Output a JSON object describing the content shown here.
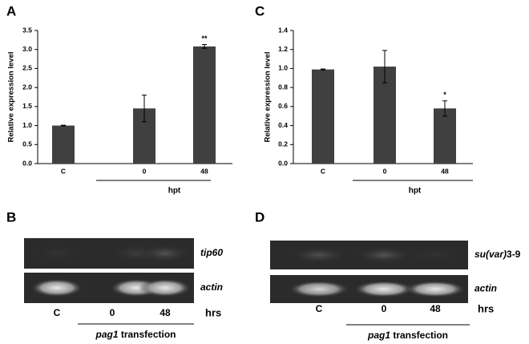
{
  "chart_data": [
    {
      "type": "bar",
      "panel": "A",
      "ylabel": "Relative expression level",
      "categories": [
        "C",
        "0",
        "48"
      ],
      "values": [
        1.0,
        1.45,
        3.08
      ],
      "errors": [
        0.01,
        0.35,
        0.05
      ],
      "significance": [
        null,
        null,
        "**"
      ],
      "group_label": "hpt",
      "color": "#404040",
      "ylim": [
        0,
        3.5
      ],
      "yticks": [
        {
          "value": 0,
          "label": "0.0"
        },
        {
          "value": 0.5,
          "label": "0.5"
        },
        {
          "value": 1,
          "label": "1.0"
        },
        {
          "value": 1.5,
          "label": "1.5"
        },
        {
          "value": 2,
          "label": "2.0"
        },
        {
          "value": 2.5,
          "label": "2.5"
        },
        {
          "value": 3,
          "label": "3.0"
        },
        {
          "value": 3.5,
          "label": "3.5"
        }
      ]
    },
    {
      "type": "bar",
      "panel": "C",
      "ylabel": "Relative expression level",
      "categories": [
        "C",
        "0",
        "48"
      ],
      "values": [
        0.99,
        1.02,
        0.58
      ],
      "errors": [
        0.005,
        0.17,
        0.08
      ],
      "significance": [
        null,
        null,
        "*"
      ],
      "group_label": "hpt",
      "color": "#404040",
      "ylim": [
        0,
        1.4
      ],
      "yticks": [
        {
          "value": 0,
          "label": "0.0"
        },
        {
          "value": 0.2,
          "label": "0.2"
        },
        {
          "value": 0.4,
          "label": "0.4"
        },
        {
          "value": 0.6,
          "label": "0.6"
        },
        {
          "value": 0.8,
          "label": "0.8"
        },
        {
          "value": 1,
          "label": "1.0"
        },
        {
          "value": 1.2,
          "label": "1.2"
        },
        {
          "value": 1.4,
          "label": "1.4"
        }
      ]
    }
  ],
  "gels": [
    {
      "panel": "B",
      "rows": [
        [
          {
            "text": "tip60",
            "italic": true
          }
        ],
        [
          {
            "text": "actin",
            "italic": true
          }
        ]
      ],
      "lanes": [
        "C",
        "0",
        "48"
      ],
      "unit": "hrs",
      "group_label": [
        {
          "text": "pag1",
          "italic": true
        },
        {
          "text": " transfection",
          "italic": false
        }
      ]
    },
    {
      "panel": "D",
      "rows": [
        [
          {
            "text": "su(var)",
            "italic": true
          },
          {
            "text": "3-9",
            "italic": false
          }
        ],
        [
          {
            "text": "actin",
            "italic": true
          }
        ]
      ],
      "lanes": [
        "C",
        "0",
        "48"
      ],
      "unit": "hrs",
      "group_label": [
        {
          "text": "pag1",
          "italic": true
        },
        {
          "text": " transfection",
          "italic": false
        }
      ]
    }
  ]
}
